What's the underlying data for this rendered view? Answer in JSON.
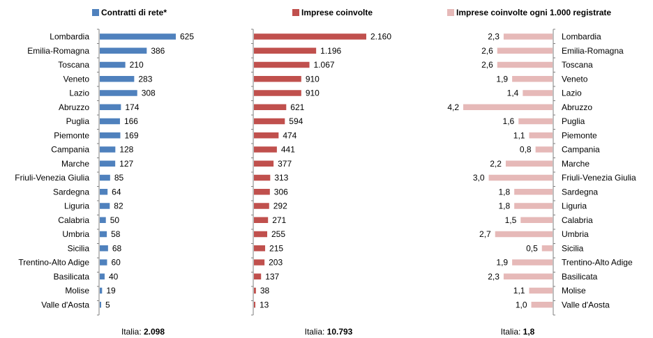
{
  "chart_data": [
    {
      "type": "bar",
      "orientation": "horizontal",
      "legend": "Contratti di rete*",
      "color": "#4f81bd",
      "categories": [
        "Lombardia",
        "Emilia-Romagna",
        "Toscana",
        "Veneto",
        "Lazio",
        "Abruzzo",
        "Puglia",
        "Piemonte",
        "Campania",
        "Marche",
        "Friuli-Venezia Giulia",
        "Sardegna",
        "Liguria",
        "Calabria",
        "Umbria",
        "Sicilia",
        "Trentino-Alto Adige",
        "Basilicata",
        "Molise",
        "Valle d'Aosta"
      ],
      "values": [
        625,
        386,
        210,
        283,
        308,
        174,
        166,
        169,
        128,
        127,
        85,
        64,
        82,
        50,
        58,
        68,
        60,
        40,
        19,
        5
      ],
      "value_labels": [
        "625",
        "386",
        "210",
        "283",
        "308",
        "174",
        "166",
        "169",
        "128",
        "127",
        "85",
        "64",
        "82",
        "50",
        "58",
        "68",
        "60",
        "40",
        "19",
        "5"
      ],
      "total_prefix": "Italia: ",
      "total_value": "2.098"
    },
    {
      "type": "bar",
      "orientation": "horizontal",
      "legend": "Imprese coinvolte",
      "color": "#c0504d",
      "values": [
        2160,
        1196,
        1067,
        910,
        910,
        621,
        594,
        474,
        441,
        377,
        313,
        306,
        292,
        271,
        255,
        215,
        203,
        137,
        38,
        13
      ],
      "value_labels": [
        "2.160",
        "1.196",
        "1.067",
        "910",
        "910",
        "621",
        "594",
        "474",
        "441",
        "377",
        "313",
        "306",
        "292",
        "271",
        "255",
        "215",
        "203",
        "137",
        "38",
        "13"
      ],
      "total_prefix": "Italia: ",
      "total_value": "10.793"
    },
    {
      "type": "bar",
      "orientation": "horizontal",
      "direction": "right-to-left",
      "legend": "Imprese coinvolte ogni 1.000 registrate",
      "color": "#e6b9b8",
      "values": [
        2.3,
        2.6,
        2.6,
        1.9,
        1.4,
        4.2,
        1.6,
        1.1,
        0.8,
        2.2,
        3.0,
        1.8,
        1.8,
        1.5,
        2.7,
        0.5,
        1.9,
        2.3,
        1.1,
        1.0
      ],
      "value_labels": [
        "2,3",
        "2,6",
        "2,6",
        "1,9",
        "1,4",
        "4,2",
        "1,6",
        "1,1",
        "0,8",
        "2,2",
        "3,0",
        "1,8",
        "1,8",
        "1,5",
        "2,7",
        "0,5",
        "1,9",
        "2,3",
        "1,1",
        "1,0"
      ],
      "total_prefix": "Italia: ",
      "total_value": "1,8"
    }
  ]
}
